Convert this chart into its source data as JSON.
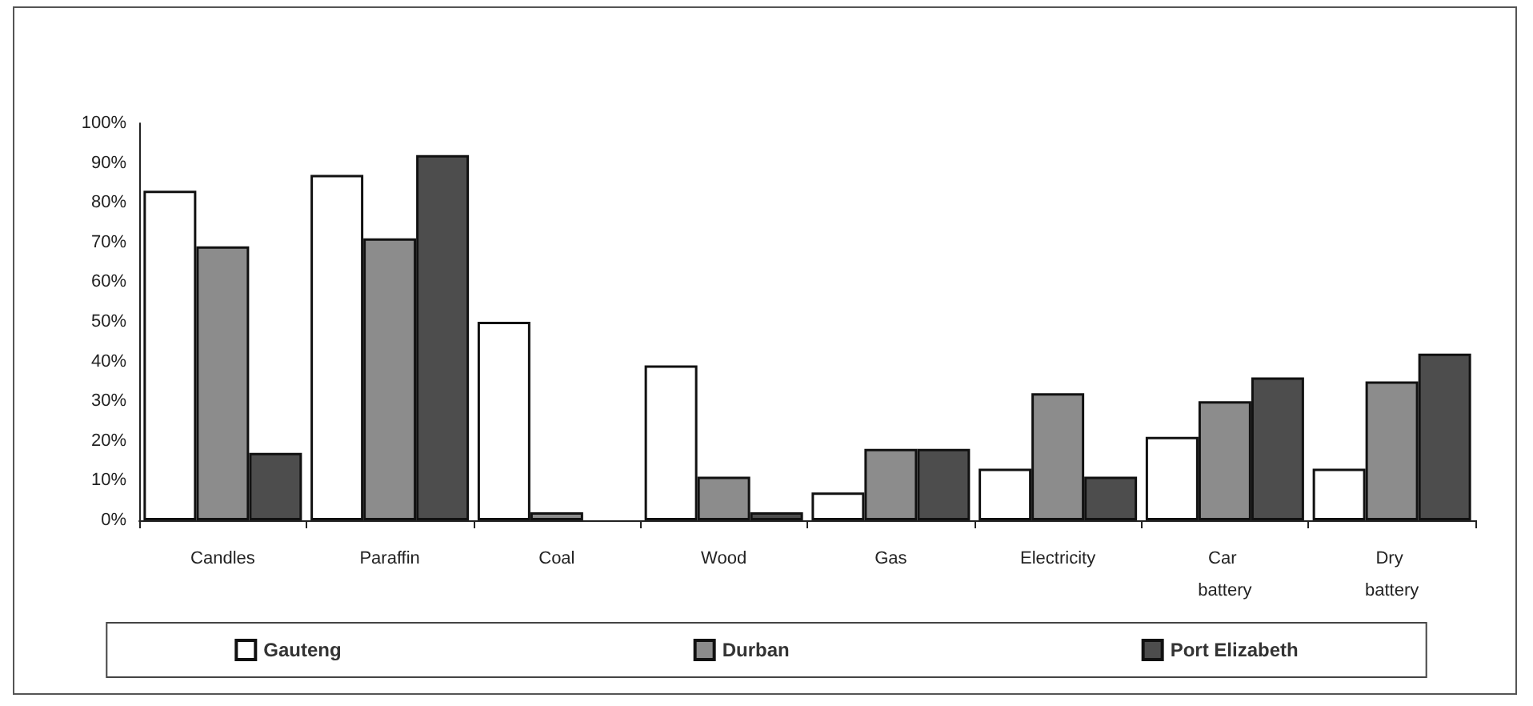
{
  "chart_data": {
    "type": "bar",
    "categories": [
      "Candles",
      "Paraffin",
      "Coal",
      "Wood",
      "Gas",
      "Electricity",
      "Car battery",
      "Dry battery"
    ],
    "series": [
      {
        "name": "Gauteng",
        "color": "#ffffff",
        "values": [
          83,
          87,
          50,
          39,
          7,
          13,
          21,
          13
        ]
      },
      {
        "name": "Durban",
        "color": "#8c8c8c",
        "values": [
          69,
          71,
          2,
          11,
          18,
          32,
          30,
          35
        ]
      },
      {
        "name": "Port Elizabeth",
        "color": "#4d4d4d",
        "values": [
          17,
          92,
          0,
          2,
          18,
          11,
          36,
          42
        ]
      }
    ],
    "ylim": [
      0,
      100
    ],
    "yticks": [
      {
        "value": 0,
        "label": "0%"
      },
      {
        "value": 10,
        "label": "10%"
      },
      {
        "value": 20,
        "label": "20%"
      },
      {
        "value": 30,
        "label": "30%"
      },
      {
        "value": 40,
        "label": "40%"
      },
      {
        "value": 50,
        "label": "50%"
      },
      {
        "value": 60,
        "label": "60%"
      },
      {
        "value": 70,
        "label": "70%"
      },
      {
        "value": 80,
        "label": "80%"
      },
      {
        "value": 90,
        "label": "90%"
      },
      {
        "value": 100,
        "label": "100%"
      }
    ],
    "grid": false,
    "legend": "bottom"
  }
}
